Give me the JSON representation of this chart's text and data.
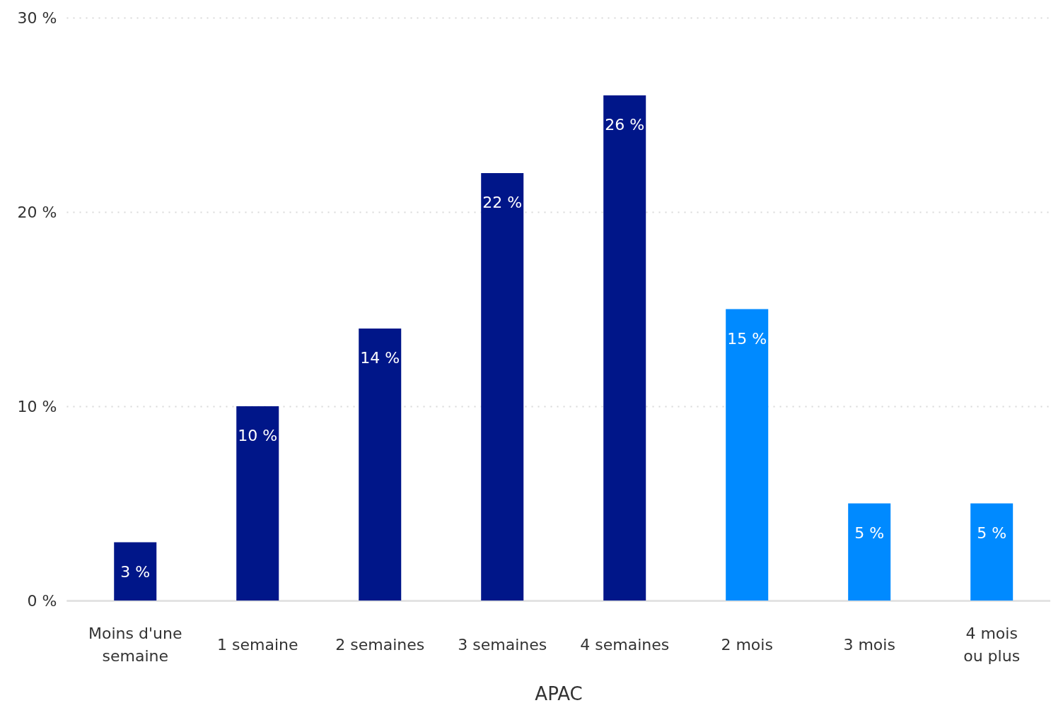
{
  "chart_data": {
    "type": "bar",
    "xlabel": "APAC",
    "categories": [
      "Moins d'une semaine",
      "1 semaine",
      "2 semaines",
      "3 semaines",
      "4 semaines",
      "2 mois",
      "3 mois",
      "4 mois ou plus"
    ],
    "values": [
      3,
      10,
      14,
      22,
      26,
      15,
      5,
      5
    ],
    "colors": [
      "#001689",
      "#001689",
      "#001689",
      "#001689",
      "#001689",
      "#008aff",
      "#008aff",
      "#008aff"
    ],
    "value_labels": [
      "3 %",
      "10 %",
      "14 %",
      "22 %",
      "26 %",
      "15 %",
      "5 %",
      "5 %"
    ],
    "ylim": [
      0,
      30
    ],
    "yticks": [
      {
        "value": 0,
        "label": "0 %"
      },
      {
        "value": 10,
        "label": "10 %"
      },
      {
        "value": 20,
        "label": "20 %"
      },
      {
        "value": 30,
        "label": "30 %"
      }
    ],
    "grid": "y"
  }
}
